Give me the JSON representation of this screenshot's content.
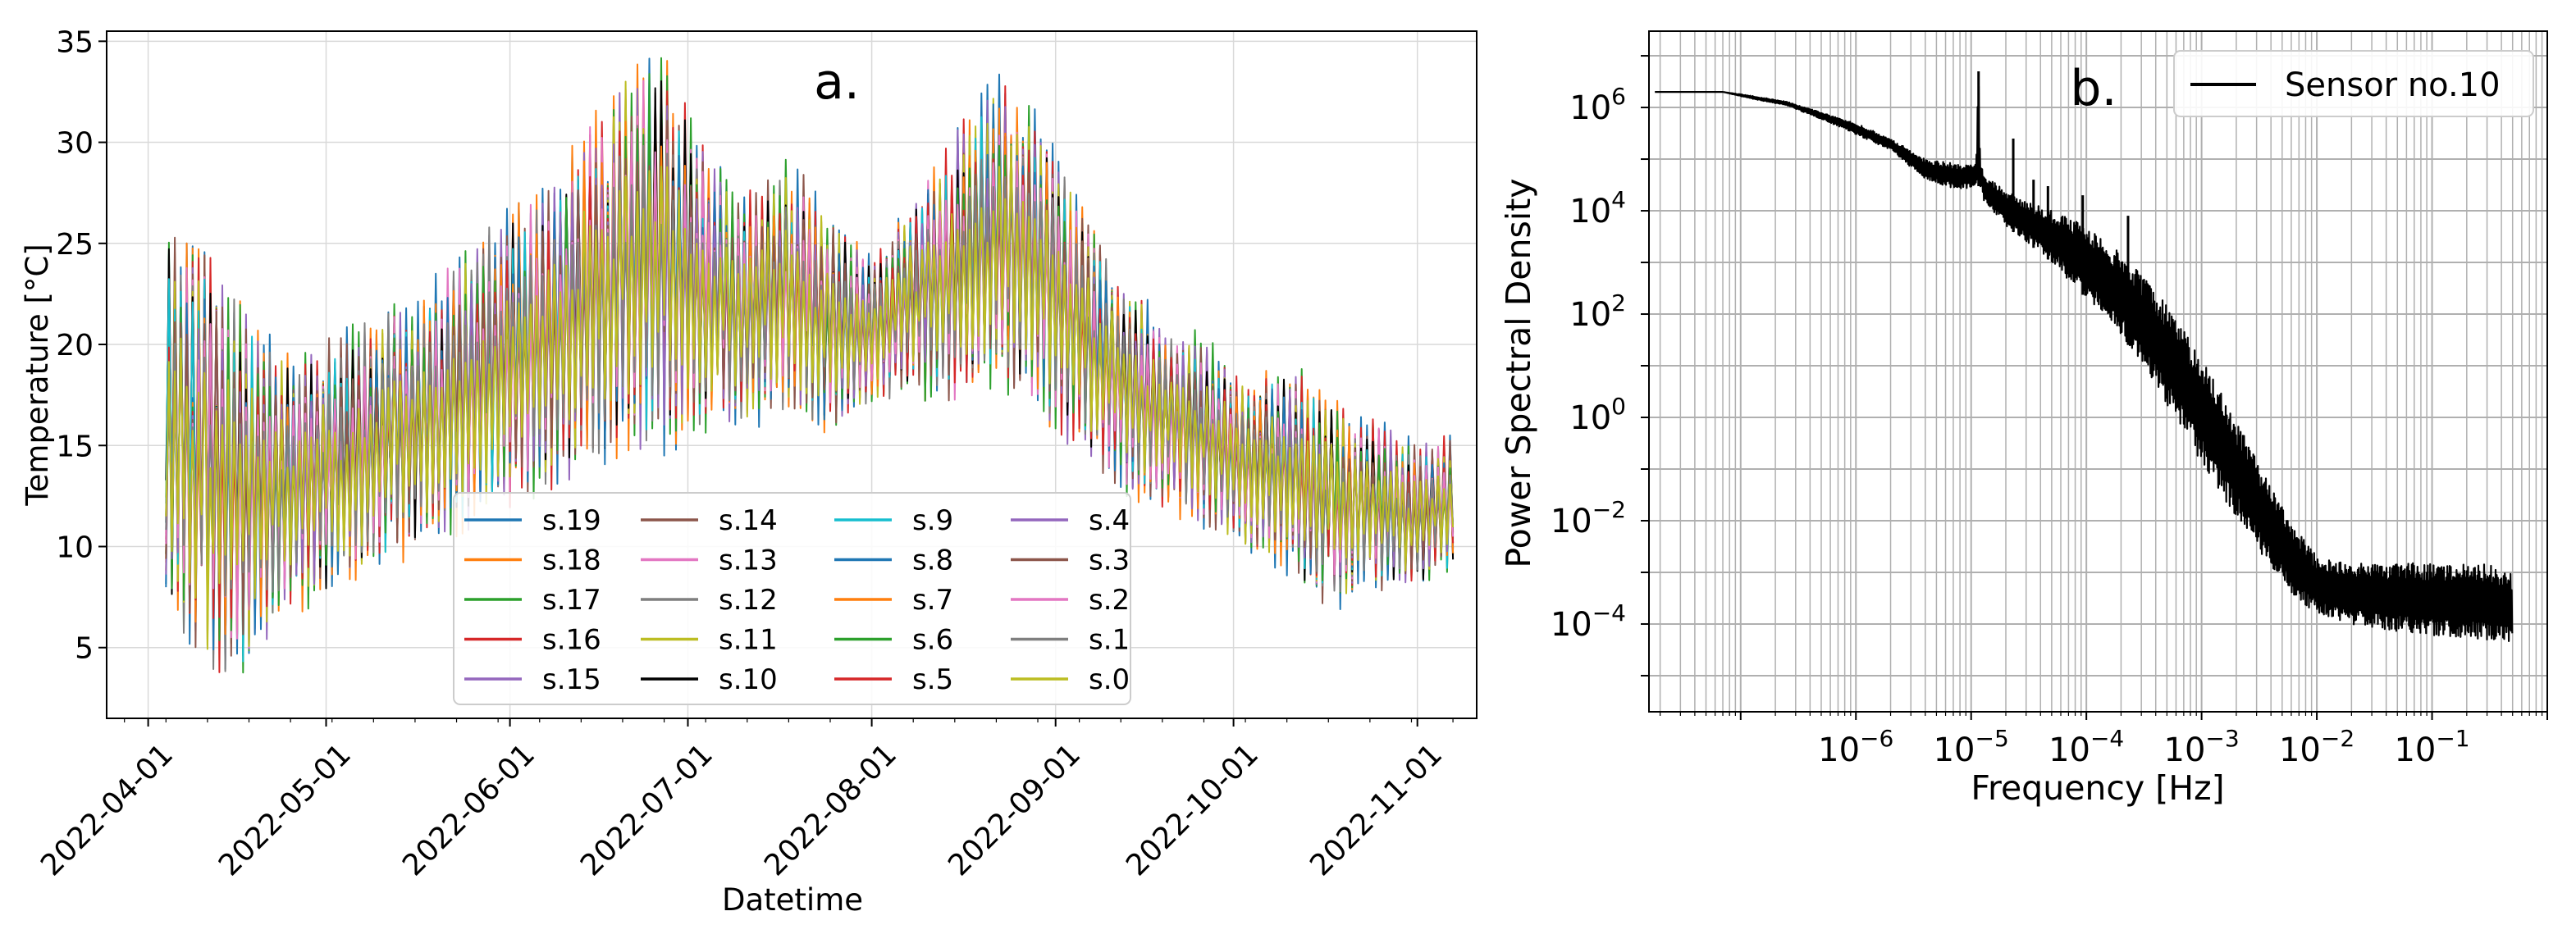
{
  "chart_data": [
    {
      "type": "line",
      "panel_label": "a.",
      "xlabel": "Datetime",
      "ylabel": "Temperature [°C]",
      "x_start": "2022-04-04",
      "x_end": "2022-11-07",
      "xlim": [
        "2022-03-25",
        "2022-11-11"
      ],
      "ylim": [
        1.5,
        35.5
      ],
      "x_ticks": [
        "2022-04-01",
        "2022-05-01",
        "2022-06-01",
        "2022-07-01",
        "2022-08-01",
        "2022-09-01",
        "2022-10-01",
        "2022-11-01"
      ],
      "y_ticks": [
        5,
        10,
        15,
        20,
        25,
        30,
        35
      ],
      "grid": true,
      "legend": {
        "placement": "lower-center",
        "columns": 4
      },
      "envelope_weekly": {
        "x": [
          "2022-04-04",
          "2022-04-11",
          "2022-04-18",
          "2022-04-25",
          "2022-05-02",
          "2022-05-09",
          "2022-05-16",
          "2022-05-23",
          "2022-05-30",
          "2022-06-06",
          "2022-06-13",
          "2022-06-20",
          "2022-06-27",
          "2022-07-04",
          "2022-07-11",
          "2022-07-18",
          "2022-07-25",
          "2022-08-01",
          "2022-08-08",
          "2022-08-15",
          "2022-08-22",
          "2022-08-29",
          "2022-09-05",
          "2022-09-12",
          "2022-09-19",
          "2022-09-26",
          "2022-10-03",
          "2022-10-10",
          "2022-10-17",
          "2022-10-24",
          "2022-10-31",
          "2022-11-07"
        ],
        "min": [
          7,
          3,
          4,
          7,
          8,
          9,
          10,
          11,
          12,
          13,
          14,
          15,
          15,
          16,
          16,
          17,
          16,
          17,
          18,
          17,
          18,
          17,
          15,
          13,
          12,
          11,
          10,
          9,
          7,
          8,
          8,
          9
        ],
        "max": [
          25,
          24,
          21,
          19,
          20,
          21,
          22,
          24,
          26,
          27,
          30,
          33,
          34,
          29,
          27,
          29,
          26,
          24,
          27,
          30,
          33,
          31,
          27,
          23,
          21,
          20,
          18,
          19,
          17,
          16,
          15,
          15
        ]
      },
      "series": [
        {
          "name": "s.19",
          "color": "#1f77b4"
        },
        {
          "name": "s.18",
          "color": "#ff7f0e"
        },
        {
          "name": "s.17",
          "color": "#2ca02c"
        },
        {
          "name": "s.16",
          "color": "#d62728"
        },
        {
          "name": "s.15",
          "color": "#9467bd"
        },
        {
          "name": "s.14",
          "color": "#8c564b"
        },
        {
          "name": "s.13",
          "color": "#e377c2"
        },
        {
          "name": "s.12",
          "color": "#7f7f7f"
        },
        {
          "name": "s.11",
          "color": "#bcbd22"
        },
        {
          "name": "s.10",
          "color": "#000000"
        },
        {
          "name": "s.9",
          "color": "#17becf"
        },
        {
          "name": "s.8",
          "color": "#1f77b4"
        },
        {
          "name": "s.7",
          "color": "#ff7f0e"
        },
        {
          "name": "s.6",
          "color": "#2ca02c"
        },
        {
          "name": "s.5",
          "color": "#d62728"
        },
        {
          "name": "s.4",
          "color": "#9467bd"
        },
        {
          "name": "s.3",
          "color": "#8c564b"
        },
        {
          "name": "s.2",
          "color": "#e377c2"
        },
        {
          "name": "s.1",
          "color": "#7f7f7f"
        },
        {
          "name": "s.0",
          "color": "#bcbd22"
        }
      ]
    },
    {
      "type": "line",
      "panel_label": "b.",
      "xlabel": "Frequency [Hz]",
      "ylabel": "Power Spectral Density",
      "x_scale": "log",
      "y_scale": "log",
      "xlim": [
        1.6e-08,
        1.0
      ],
      "ylim": [
        2e-06,
        30000000.0
      ],
      "x_tick_exponents": [
        -6,
        -5,
        -4,
        -3,
        -2,
        -1
      ],
      "y_tick_exponents": [
        -4,
        -2,
        0,
        2,
        4,
        6
      ],
      "grid": true,
      "legend": {
        "placement": "top-right"
      },
      "series": [
        {
          "name": "Sensor no.10",
          "color": "#000000",
          "x": [
            1.8e-08,
            4e-08,
            7e-08,
            1.2e-07,
            2.5e-07,
            5e-07,
            1e-06,
            2e-06,
            4e-06,
            8e-06,
            1.1e-05,
            1.16e-05,
            1.2e-05,
            1.3e-05,
            2e-05,
            3e-05,
            5e-05,
            0.0001,
            0.0002,
            0.0004,
            0.0008,
            0.0015,
            0.003,
            0.006,
            0.01,
            0.02,
            0.05,
            0.1,
            0.3,
            0.5
          ],
          "y": [
            2000000.0,
            2000000.0,
            2000000.0,
            1600000.0,
            1200000.0,
            700000.0,
            400000.0,
            200000.0,
            70000.0,
            50000.0,
            50000.0,
            5000000.0,
            50000.0,
            30000.0,
            12000.0,
            7000.0,
            4000.0,
            1800.0,
            500.0,
            60,
            5,
            0.5,
            0.03,
            0.003,
            0.0007,
            0.0005,
            0.0005,
            0.0005,
            0.0005,
            0.0004
          ],
          "band_low": [
            2000000.0,
            2000000.0,
            2000000.0,
            1500000.0,
            1100000.0,
            600000.0,
            300000.0,
            150000.0,
            40000.0,
            25000.0,
            30000.0,
            30000.0,
            30000.0,
            15000.0,
            5000.0,
            2500.0,
            1000.0,
            200.0,
            40,
            4,
            0.3,
            0.03,
            0.003,
            0.0004,
            0.00015,
            0.0001,
            7e-05,
            6e-05,
            5e-05,
            4e-05
          ],
          "band_high": [
            2000000.0,
            2000000.0,
            2000000.0,
            1700000.0,
            1300000.0,
            800000.0,
            500000.0,
            250000.0,
            100000.0,
            80000.0,
            80000.0,
            5000000.0,
            80000.0,
            50000.0,
            25000.0,
            15000.0,
            10000.0,
            5000.0,
            1500.0,
            300.0,
            30,
            3,
            0.15,
            0.01,
            0.002,
            0.0015,
            0.0015,
            0.0015,
            0.0015,
            0.001
          ]
        }
      ]
    }
  ]
}
